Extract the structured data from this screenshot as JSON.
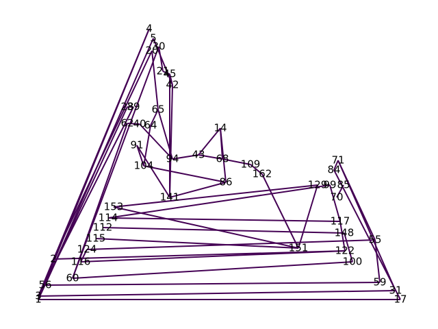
{
  "nodes": [
    {
      "label": "4"
    },
    {
      "label": "5"
    },
    {
      "label": "30"
    },
    {
      "label": "20"
    },
    {
      "label": "21"
    },
    {
      "label": "45"
    },
    {
      "label": "42"
    },
    {
      "label": "28"
    },
    {
      "label": "39"
    },
    {
      "label": "65"
    },
    {
      "label": "62"
    },
    {
      "label": "40"
    },
    {
      "label": "64"
    },
    {
      "label": "14"
    },
    {
      "label": "91"
    },
    {
      "label": "104"
    },
    {
      "label": "94"
    },
    {
      "label": "43"
    },
    {
      "label": "68"
    },
    {
      "label": "109"
    },
    {
      "label": "162"
    },
    {
      "label": "86"
    },
    {
      "label": "141"
    },
    {
      "label": "71"
    },
    {
      "label": "84"
    },
    {
      "label": "129"
    },
    {
      "label": "99"
    },
    {
      "label": "85"
    },
    {
      "label": "70"
    },
    {
      "label": "117"
    },
    {
      "label": "148"
    },
    {
      "label": "151"
    },
    {
      "label": "153"
    },
    {
      "label": "114"
    },
    {
      "label": "112"
    },
    {
      "label": "115"
    },
    {
      "label": "124"
    },
    {
      "label": "2"
    },
    {
      "label": "116"
    },
    {
      "label": "60"
    },
    {
      "label": "56"
    },
    {
      "label": "3"
    },
    {
      "label": "1"
    },
    {
      "label": "55"
    },
    {
      "label": "122"
    },
    {
      "label": "100"
    },
    {
      "label": "59"
    },
    {
      "label": "31"
    },
    {
      "label": "17"
    }
  ]
}
